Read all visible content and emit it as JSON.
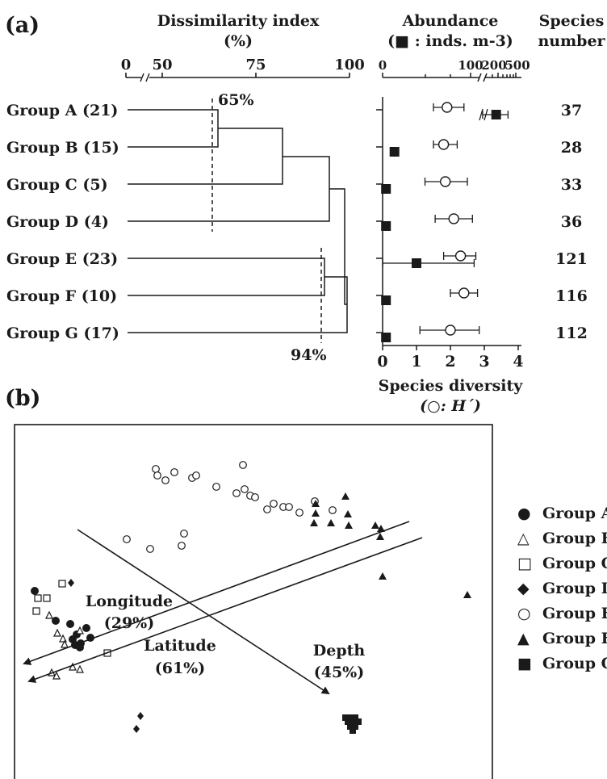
{
  "chart_data": [
    {
      "panel": "(a)",
      "type": "dendrogram",
      "title": "Dissimilarity index",
      "unit": "(%)",
      "ticks": [
        "0",
        "50",
        "75",
        "100"
      ],
      "groups": [
        "Group A (21)",
        "Group B (15)",
        "Group C (5)",
        "Group D (4)",
        "Group E (23)",
        "Group F (10)",
        "Group G (17)"
      ],
      "merges": [
        {
          "left": "A",
          "right": "B",
          "height": 66
        },
        {
          "left": "AB",
          "right": "C",
          "height": 83
        },
        {
          "left": "ABC",
          "right": "D",
          "height": 94
        },
        {
          "left": "E",
          "right": "F",
          "height": 95
        },
        {
          "left": "EF",
          "right": "G",
          "height": 99
        },
        {
          "left": "ABCD",
          "right": "EFG",
          "height": 100
        }
      ],
      "cutoffs": [
        {
          "value": 65,
          "label": "65%"
        },
        {
          "value": 94,
          "label": "94%"
        }
      ]
    },
    {
      "panel": "(a)",
      "type": "dot-errorbar",
      "title_line1": "Abundance",
      "title_line2": "(■ : inds. m-3)",
      "top_ticks": [
        "0",
        "100",
        "200",
        "500"
      ],
      "xlabel": "Species diversity",
      "xlabel_sub": "(○: H´)",
      "xlim": [
        0,
        4
      ],
      "bottom_ticks": [
        "0",
        "1",
        "2",
        "3",
        "4"
      ],
      "categories": [
        "A",
        "B",
        "C",
        "D",
        "E",
        "F",
        "G"
      ],
      "series": [
        {
          "name": "Species diversity (H´)",
          "marker": "open-circle",
          "values": [
            1.9,
            1.8,
            1.85,
            2.1,
            2.3,
            2.4,
            2.0
          ],
          "err_low": [
            1.5,
            1.5,
            1.25,
            1.55,
            1.8,
            2.0,
            1.1
          ],
          "err_high": [
            2.4,
            2.2,
            2.5,
            2.65,
            2.75,
            2.8,
            2.85
          ]
        },
        {
          "name": "Abundance",
          "marker": "filled-square",
          "values": [
            3.35,
            0.35,
            0.1,
            0.1,
            1.0,
            0.1,
            0.1
          ],
          "err_low": [
            2.95,
            0.3,
            0.05,
            0.05,
            0.0,
            0.05,
            0.05
          ],
          "err_high": [
            3.7,
            0.45,
            0.15,
            0.15,
            2.7,
            0.15,
            0.15
          ]
        }
      ],
      "species_header_line1": "Species",
      "species_header_line2": "number",
      "species_number": [
        37,
        28,
        33,
        36,
        121,
        116,
        112
      ]
    },
    {
      "panel": "(b)",
      "type": "ordination",
      "legend": [
        "Group A",
        "Group B",
        "Group C",
        "Group D",
        "Group E",
        "Group F",
        "Group G"
      ],
      "legend_markers": [
        "●",
        "△",
        "□",
        "◆",
        "○",
        "▲",
        "■"
      ],
      "vectors": [
        {
          "name": "Longitude",
          "percent": "(29%)"
        },
        {
          "name": "Latitude",
          "percent": "(61%)"
        },
        {
          "name": "Depth",
          "percent": "(45%)"
        }
      ]
    }
  ]
}
